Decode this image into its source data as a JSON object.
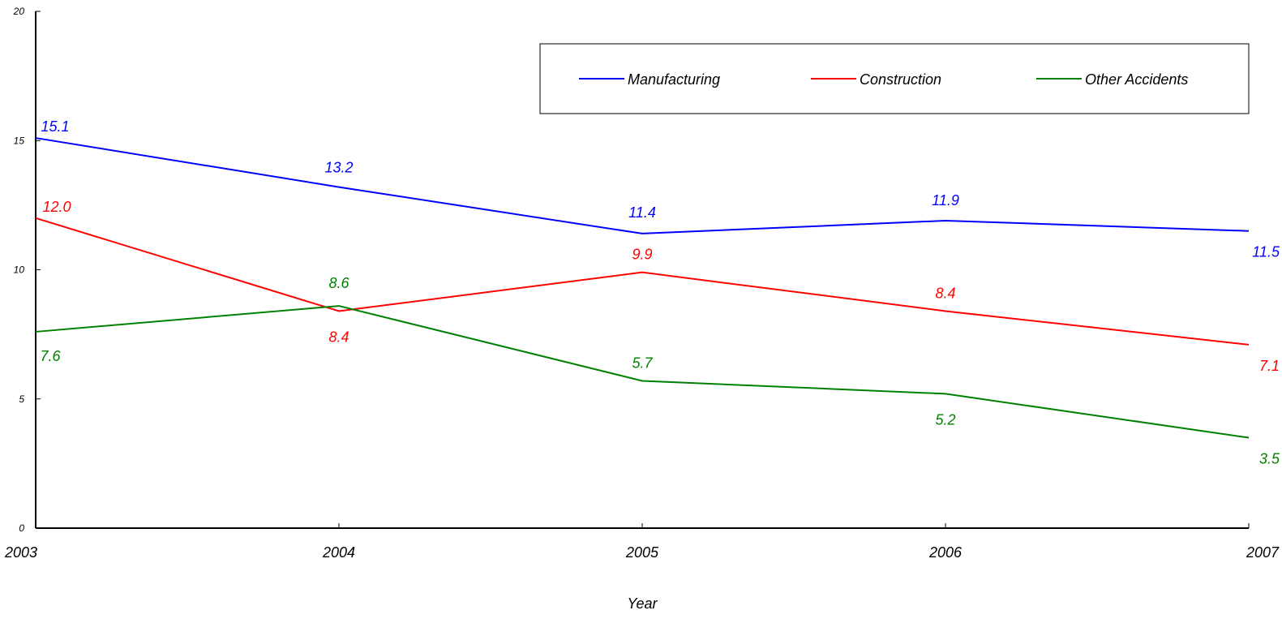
{
  "chart_data": {
    "type": "line",
    "title": "",
    "xlabel": "Year",
    "ylabel": "",
    "x": [
      "2003",
      "2004",
      "2005",
      "2006",
      "2007"
    ],
    "ylim": [
      0,
      20
    ],
    "yticks": [
      "0",
      "5",
      "10",
      "15",
      "20"
    ],
    "grid": false,
    "legend_position": "top-right",
    "series": [
      {
        "name": "Manufacturing",
        "color": "#0000ff",
        "values": [
          15.1,
          13.2,
          11.4,
          11.9,
          11.5
        ],
        "labels": [
          "15.1",
          "13.2",
          "11.4",
          "11.9",
          "11.5"
        ]
      },
      {
        "name": "Construction",
        "color": "#ff0000",
        "values": [
          12.0,
          8.4,
          9.9,
          8.4,
          7.1
        ],
        "labels": [
          "12.0",
          "8.4",
          "9.9",
          "8.4",
          "7.1"
        ]
      },
      {
        "name": "Other Accidents",
        "color": "#008000",
        "values": [
          7.6,
          8.6,
          5.7,
          5.2,
          3.5
        ],
        "labels": [
          "7.6",
          "8.6",
          "5.7",
          "5.2",
          "3.5"
        ]
      }
    ]
  }
}
